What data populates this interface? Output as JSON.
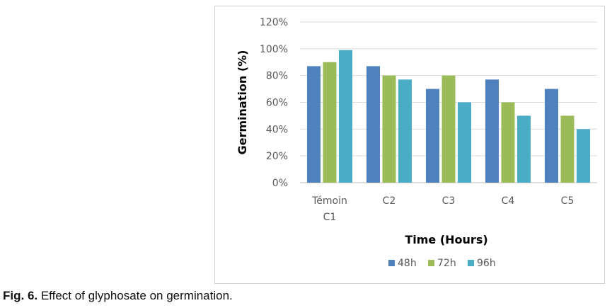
{
  "chart_data": {
    "type": "bar",
    "title": "",
    "xlabel": "Time (Hours)",
    "ylabel": "Germination (%)",
    "ylim": [
      0,
      120
    ],
    "yticks": [
      "0%",
      "20%",
      "40%",
      "60%",
      "80%",
      "100%",
      "120%"
    ],
    "categories": [
      [
        "Témoin",
        "C1"
      ],
      [
        "C2"
      ],
      [
        "C3"
      ],
      [
        "C4"
      ],
      [
        "C5"
      ]
    ],
    "series": [
      {
        "name": "48h",
        "color": "#4f81bd",
        "values": [
          87,
          87,
          70,
          77,
          70
        ]
      },
      {
        "name": "72h",
        "color": "#9bbb59",
        "values": [
          90,
          80,
          80,
          60,
          50
        ]
      },
      {
        "name": "96h",
        "color": "#4bacc6",
        "values": [
          99,
          77,
          60,
          50,
          40
        ]
      }
    ],
    "grid": true,
    "legend": "bottom-center"
  },
  "caption": {
    "label": "Fig. 6.",
    "text": " Effect of glyphosate on germination."
  }
}
